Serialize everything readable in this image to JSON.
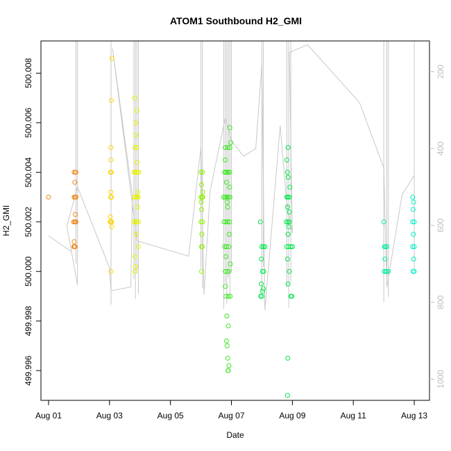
{
  "chart_data": {
    "type": "scatter",
    "title": "ATOM1 Southbound H2_GMI",
    "xlabel": "Date",
    "ylabel": "H2_GMI",
    "x_tick_labels": [
      "Aug 01",
      "Aug 03",
      "Aug 05",
      "Aug 07",
      "Aug 09",
      "Aug 11",
      "Aug 13"
    ],
    "y_tick_labels": [
      "499.996",
      "499.998",
      "500.000",
      "500.002",
      "500.004",
      "500.006",
      "500.008"
    ],
    "y2_tick_labels": [
      "200",
      "400",
      "600",
      "800",
      "1000"
    ],
    "x_ticks_days": [
      1,
      3,
      5,
      7,
      9,
      11,
      13
    ],
    "y_ticks": [
      499.996,
      499.998,
      500.0,
      500.002,
      500.004,
      500.006,
      500.008
    ],
    "y2_ticks": [
      200,
      400,
      600,
      800,
      1000
    ],
    "xlim_days": [
      0.75,
      13.5
    ],
    "ylim": [
      499.9948,
      500.0093
    ],
    "y2lim": [
      120,
      1055
    ],
    "colors": {
      "line": "#c8c8c8",
      "orange": "#f08a20",
      "gold": "#ffd400",
      "yellow": "#e6f200",
      "lime": "#8ef000",
      "green": "#3ae820",
      "bright_green": "#00e84a",
      "teal": "#00f0a0",
      "cyan": "#00f0c8"
    },
    "point_series": [
      {
        "color": "orange",
        "points": [
          [
            1.0,
            500.003
          ],
          [
            1.83,
            500.001
          ],
          [
            1.85,
            500.001
          ],
          [
            1.87,
            500.001
          ],
          [
            1.82,
            500.002
          ],
          [
            1.86,
            500.002
          ],
          [
            1.88,
            500.002
          ],
          [
            1.9,
            500.002
          ],
          [
            1.84,
            500.003
          ],
          [
            1.87,
            500.003
          ],
          [
            1.9,
            500.003
          ],
          [
            1.84,
            500.004
          ],
          [
            1.88,
            500.004
          ],
          [
            1.9,
            500.004
          ],
          [
            1.86,
            500.0036
          ],
          [
            1.88,
            500.0023
          ],
          [
            1.84,
            500.0012
          ]
        ]
      },
      {
        "color": "gold",
        "points": [
          [
            3.02,
            500.002
          ],
          [
            3.05,
            500.002
          ],
          [
            3.07,
            500.002
          ],
          [
            3.04,
            500.003
          ],
          [
            3.06,
            500.003
          ],
          [
            3.03,
            500.004
          ],
          [
            3.06,
            500.004
          ],
          [
            3.05,
            500.0045
          ],
          [
            3.04,
            500.005
          ],
          [
            3.06,
            500.0069
          ],
          [
            3.08,
            500.0086
          ],
          [
            3.03,
            500.0022
          ],
          [
            3.04,
            500.0032
          ],
          [
            3.05,
            500.0
          ],
          [
            3.07,
            500.0018
          ]
        ]
      },
      {
        "color": "yellow",
        "points": [
          [
            3.8,
            500.002
          ],
          [
            3.85,
            500.002
          ],
          [
            3.9,
            500.002
          ],
          [
            3.95,
            500.002
          ],
          [
            3.82,
            500.003
          ],
          [
            3.86,
            500.003
          ],
          [
            3.9,
            500.003
          ],
          [
            3.94,
            500.003
          ],
          [
            3.8,
            500.004
          ],
          [
            3.84,
            500.004
          ],
          [
            3.88,
            500.004
          ],
          [
            3.92,
            500.004
          ],
          [
            3.96,
            500.004
          ],
          [
            3.84,
            500.005
          ],
          [
            3.88,
            500.005
          ],
          [
            3.86,
            500.006
          ],
          [
            3.9,
            500.0065
          ],
          [
            3.82,
            500.007
          ],
          [
            3.86,
            500.0055
          ],
          [
            3.92,
            500.0026
          ],
          [
            3.88,
            500.0015
          ],
          [
            3.95,
            500.001
          ],
          [
            3.84,
            500.0006
          ],
          [
            3.86,
            500.0002
          ],
          [
            3.83,
            500.0
          ],
          [
            3.93,
            500.0032
          ],
          [
            3.9,
            500.0044
          ]
        ]
      },
      {
        "color": "lime",
        "points": [
          [
            6.0,
            500.004
          ],
          [
            6.05,
            500.004
          ],
          [
            6.02,
            500.0035
          ],
          [
            6.04,
            500.003
          ],
          [
            6.0,
            500.003
          ],
          [
            6.06,
            500.003
          ],
          [
            6.02,
            500.0025
          ],
          [
            6.0,
            500.002
          ],
          [
            6.05,
            500.002
          ],
          [
            6.03,
            500.0015
          ],
          [
            6.02,
            500.001
          ],
          [
            6.04,
            500.001
          ],
          [
            6.02,
            500.0
          ],
          [
            6.06,
            500.0032
          ],
          [
            6.01,
            500.0028
          ]
        ]
      },
      {
        "color": "green",
        "points": [
          [
            6.75,
            500.003
          ],
          [
            6.8,
            500.003
          ],
          [
            6.85,
            500.003
          ],
          [
            6.9,
            500.003
          ],
          [
            6.95,
            500.003
          ],
          [
            6.78,
            500.004
          ],
          [
            6.82,
            500.004
          ],
          [
            6.86,
            500.004
          ],
          [
            6.9,
            500.004
          ],
          [
            6.94,
            500.004
          ],
          [
            6.8,
            500.005
          ],
          [
            6.88,
            500.005
          ],
          [
            6.95,
            500.005
          ],
          [
            6.76,
            500.002
          ],
          [
            6.82,
            500.002
          ],
          [
            6.88,
            500.002
          ],
          [
            6.94,
            500.002
          ],
          [
            6.78,
            500.001
          ],
          [
            6.84,
            500.001
          ],
          [
            6.92,
            500.001
          ],
          [
            6.8,
            500.0
          ],
          [
            6.86,
            500.0
          ],
          [
            6.92,
            500.0
          ],
          [
            6.82,
            499.999
          ],
          [
            6.9,
            499.999
          ],
          [
            6.96,
            499.999
          ],
          [
            6.85,
            499.9982
          ],
          [
            6.9,
            499.9978
          ],
          [
            6.84,
            499.9972
          ],
          [
            6.88,
            499.9965
          ],
          [
            6.92,
            499.9962
          ],
          [
            6.86,
            499.997
          ],
          [
            6.89,
            499.996
          ],
          [
            6.9,
            499.996
          ],
          [
            6.95,
            500.0058
          ],
          [
            6.98,
            500.0052
          ],
          [
            6.8,
            500.0045
          ],
          [
            6.84,
            500.0036
          ],
          [
            6.88,
            500.0026
          ],
          [
            6.93,
            500.0015
          ],
          [
            6.82,
            500.0006
          ],
          [
            6.96,
            500.0003
          ],
          [
            6.8,
            499.9994
          ],
          [
            6.86,
            500.0028
          ],
          [
            6.94,
            500.0034
          ]
        ]
      },
      {
        "color": "bright_green",
        "points": [
          [
            7.95,
            500.002
          ],
          [
            8.0,
            500.001
          ],
          [
            8.05,
            500.001
          ],
          [
            8.1,
            500.001
          ],
          [
            7.98,
            500.0005
          ],
          [
            8.02,
            500.0
          ],
          [
            8.06,
            500.0
          ],
          [
            7.98,
            499.9995
          ],
          [
            8.02,
            499.9992
          ],
          [
            7.96,
            499.999
          ],
          [
            8.0,
            499.999
          ],
          [
            8.05,
            499.9993
          ],
          [
            8.82,
            500.003
          ],
          [
            8.85,
            500.003
          ],
          [
            8.9,
            500.003
          ],
          [
            8.8,
            500.002
          ],
          [
            8.85,
            500.002
          ],
          [
            8.9,
            500.002
          ],
          [
            8.82,
            500.001
          ],
          [
            8.88,
            500.001
          ],
          [
            8.95,
            500.001
          ],
          [
            9.0,
            500.001
          ],
          [
            8.84,
            500.004
          ],
          [
            8.86,
            500.0038
          ],
          [
            8.82,
            500.0045
          ],
          [
            8.86,
            500.005
          ],
          [
            8.84,
            500.0026
          ],
          [
            8.9,
            500.0024
          ],
          [
            8.86,
            500.0015
          ],
          [
            8.84,
            500.0005
          ],
          [
            8.9,
            500.0
          ],
          [
            8.86,
            499.9995
          ],
          [
            8.95,
            499.999
          ],
          [
            8.98,
            499.999
          ],
          [
            8.85,
            499.9965
          ],
          [
            8.84,
            499.995
          ],
          [
            8.92,
            500.0034
          ],
          [
            8.88,
            500.0018
          ]
        ]
      },
      {
        "color": "teal",
        "points": [
          [
            12.0,
            500.002
          ],
          [
            12.02,
            500.001
          ],
          [
            12.05,
            500.001
          ],
          [
            12.1,
            500.001
          ],
          [
            12.02,
            500.0
          ],
          [
            12.06,
            500.0
          ],
          [
            12.1,
            500.0
          ],
          [
            12.15,
            500.0
          ],
          [
            12.04,
            500.0005
          ]
        ]
      },
      {
        "color": "cyan",
        "points": [
          [
            12.95,
            500.003
          ],
          [
            12.98,
            500.0028
          ],
          [
            12.96,
            500.0025
          ],
          [
            12.95,
            500.002
          ],
          [
            13.0,
            500.002
          ],
          [
            12.97,
            500.0015
          ],
          [
            12.95,
            500.001
          ],
          [
            13.0,
            500.001
          ],
          [
            12.98,
            500.0005
          ],
          [
            12.96,
            500.0
          ],
          [
            13.0,
            500.0
          ]
        ]
      }
    ],
    "line_series": [
      {
        "name": "",
        "points": [
          [
            1.0,
            627
          ],
          [
            1.75,
            668
          ],
          [
            1.95,
            755
          ],
          [
            1.6,
            602
          ],
          [
            1.95,
            500
          ],
          [
            3.0,
            710
          ],
          [
            3.05,
            770
          ],
          [
            3.7,
            760
          ],
          [
            3.75,
            520
          ],
          [
            3.1,
            140
          ],
          [
            3.9,
            640
          ],
          [
            5.6,
            680
          ],
          [
            6.0,
            395
          ],
          [
            6.1,
            780
          ],
          [
            6.3,
            510
          ],
          [
            6.8,
            320
          ],
          [
            7.0,
            380
          ],
          [
            7.4,
            420
          ],
          [
            7.8,
            400
          ],
          [
            8.0,
            180
          ],
          [
            8.1,
            820
          ],
          [
            8.6,
            340
          ],
          [
            8.8,
            530
          ],
          [
            9.0,
            620
          ],
          [
            8.9,
            150
          ],
          [
            9.5,
            130
          ],
          [
            11.2,
            280
          ],
          [
            12.0,
            450
          ],
          [
            12.1,
            760
          ],
          [
            12.6,
            520
          ],
          [
            13.0,
            470
          ],
          [
            13.0,
            700
          ]
        ]
      }
    ]
  }
}
